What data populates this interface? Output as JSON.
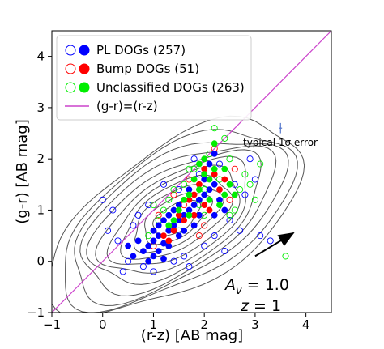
{
  "chart_data": {
    "type": "scatter",
    "xlabel": "(r-z) [AB mag]",
    "ylabel": "(g-r) [AB mag]",
    "xlim": [
      -1,
      4.5
    ],
    "ylim": [
      -1,
      4.5
    ],
    "xticks": [
      "−1",
      "0",
      "1",
      "2",
      "3",
      "4"
    ],
    "yticks": [
      "−1",
      "0",
      "1",
      "2",
      "3",
      "4"
    ],
    "grid": false,
    "legend_position": "top-left",
    "legend": [
      {
        "label": "PL DOGs (257)",
        "color": "#0000ff"
      },
      {
        "label": "Bump DOGs (51)",
        "color": "#ff0000"
      },
      {
        "label": "Unclassified DOGs (263)",
        "color": "#00ee00"
      },
      {
        "label": "(g-r)=(r-z)",
        "color": "#cc44cc"
      }
    ],
    "annotations": {
      "error_label": "typical 1σ error",
      "error_bar": {
        "x": 3.5,
        "y": 2.6,
        "xerr": 0.03,
        "yerr": 0.1
      },
      "reddening_vector": {
        "from": [
          3.0,
          0.1
        ],
        "to": [
          3.75,
          0.55
        ]
      },
      "av_label": "A",
      "av_subscript": "v",
      "av_value": " = 1.0",
      "z_label": "z",
      "z_value": " = 1"
    },
    "colors": {
      "pl": "#0000ff",
      "bump": "#ff0000",
      "unclassified": "#00ee00",
      "line": "#cc44cc",
      "contour": "#555555"
    },
    "series": [
      {
        "name": "PL DOGs (257)",
        "color": "#0000ff",
        "filled": [
          [
            0.9,
            0.3
          ],
          [
            1.0,
            0.4
          ],
          [
            1.1,
            0.5
          ],
          [
            1.2,
            0.35
          ],
          [
            0.8,
            0.2
          ],
          [
            1.3,
            0.6
          ],
          [
            1.4,
            0.7
          ],
          [
            1.5,
            0.8
          ],
          [
            1.0,
            0.1
          ],
          [
            0.7,
            0.4
          ],
          [
            1.6,
            0.9
          ],
          [
            1.7,
            1.0
          ],
          [
            1.8,
            1.1
          ],
          [
            1.9,
            1.2
          ],
          [
            2.0,
            1.3
          ],
          [
            2.1,
            1.4
          ],
          [
            2.2,
            1.5
          ],
          [
            1.2,
            0.8
          ],
          [
            1.1,
            0.2
          ],
          [
            0.9,
            0.0
          ],
          [
            1.3,
            0.3
          ],
          [
            1.5,
            0.5
          ],
          [
            1.6,
            0.6
          ],
          [
            2.0,
            1.6
          ],
          [
            2.1,
            1.9
          ],
          [
            2.2,
            2.1
          ],
          [
            1.9,
            0.9
          ],
          [
            1.4,
            1.0
          ],
          [
            1.8,
            0.7
          ],
          [
            1.2,
            0.05
          ],
          [
            1.0,
            0.6
          ],
          [
            0.6,
            0.1
          ],
          [
            1.7,
            1.4
          ],
          [
            2.3,
            1.2
          ],
          [
            2.4,
            1.0
          ],
          [
            2.2,
            0.9
          ],
          [
            1.5,
            1.1
          ],
          [
            1.3,
            0.9
          ],
          [
            1.1,
            0.7
          ],
          [
            0.5,
            0.3
          ]
        ],
        "hollow": [
          [
            0.5,
            0.0
          ],
          [
            0.3,
            0.4
          ],
          [
            0.8,
            -0.1
          ],
          [
            1.4,
            0.0
          ],
          [
            0.6,
            0.7
          ],
          [
            1.6,
            0.1
          ],
          [
            2.0,
            0.3
          ],
          [
            2.5,
            0.8
          ],
          [
            2.8,
            1.3
          ],
          [
            3.0,
            1.6
          ],
          [
            0.2,
            1.0
          ],
          [
            0.0,
            1.2
          ],
          [
            1.2,
            1.5
          ],
          [
            1.8,
            2.0
          ],
          [
            2.9,
            2.0
          ],
          [
            3.3,
            0.4
          ],
          [
            2.4,
            0.2
          ],
          [
            0.4,
            -0.2
          ],
          [
            1.0,
            -0.2
          ],
          [
            1.7,
            -0.1
          ],
          [
            2.6,
            1.5
          ],
          [
            0.9,
            1.1
          ],
          [
            1.9,
            1.7
          ],
          [
            2.3,
            1.9
          ],
          [
            0.1,
            0.6
          ],
          [
            3.1,
            0.5
          ],
          [
            2.7,
            0.6
          ],
          [
            1.5,
            1.4
          ],
          [
            0.7,
            0.9
          ],
          [
            2.2,
            0.5
          ]
        ]
      },
      {
        "name": "Bump DOGs (51)",
        "color": "#ff0000",
        "filled": [
          [
            1.4,
            0.6
          ],
          [
            1.8,
            1.3
          ],
          [
            2.0,
            1.1
          ],
          [
            2.2,
            1.7
          ],
          [
            1.6,
            0.8
          ],
          [
            1.9,
            1.5
          ],
          [
            2.1,
            1.0
          ],
          [
            1.3,
            0.4
          ],
          [
            1.7,
            1.2
          ],
          [
            2.3,
            1.4
          ],
          [
            1.5,
            0.9
          ],
          [
            2.0,
            1.8
          ],
          [
            1.2,
            0.5
          ],
          [
            2.4,
            1.6
          ],
          [
            1.8,
            0.9
          ]
        ],
        "hollow": [
          [
            1.6,
            1.1
          ],
          [
            2.0,
            0.7
          ],
          [
            1.1,
            0.9
          ],
          [
            2.5,
            1.2
          ],
          [
            1.4,
            1.3
          ],
          [
            2.2,
            2.2
          ],
          [
            1.9,
            0.5
          ],
          [
            2.6,
            1.8
          ],
          [
            1.0,
            0.3
          ],
          [
            1.7,
            1.6
          ]
        ]
      },
      {
        "name": "Unclassified DOGs (263)",
        "color": "#00ee00",
        "filled": [
          [
            1.5,
            1.0
          ],
          [
            1.7,
            1.3
          ],
          [
            1.9,
            1.4
          ],
          [
            2.1,
            1.2
          ],
          [
            2.2,
            1.8
          ],
          [
            2.0,
            2.0
          ],
          [
            2.4,
            1.3
          ],
          [
            1.6,
            1.2
          ],
          [
            1.8,
            1.6
          ],
          [
            2.3,
            1.1
          ],
          [
            1.4,
            0.8
          ],
          [
            2.5,
            1.5
          ],
          [
            2.2,
            2.3
          ],
          [
            1.9,
            1.9
          ],
          [
            2.1,
            1.6
          ],
          [
            1.3,
            0.7
          ],
          [
            2.6,
            1.3
          ],
          [
            1.7,
            0.9
          ],
          [
            2.0,
            1.7
          ],
          [
            2.4,
            1.8
          ]
        ],
        "hollow": [
          [
            1.2,
            1.0
          ],
          [
            1.6,
            1.5
          ],
          [
            2.0,
            1.4
          ],
          [
            2.3,
            1.6
          ],
          [
            2.5,
            2.0
          ],
          [
            1.8,
            1.8
          ],
          [
            2.7,
            1.4
          ],
          [
            1.1,
            0.8
          ],
          [
            1.5,
            0.6
          ],
          [
            2.1,
            2.1
          ],
          [
            2.4,
            2.4
          ],
          [
            1.3,
            1.2
          ],
          [
            2.8,
            1.7
          ],
          [
            1.9,
            1.1
          ],
          [
            2.6,
            1.0
          ],
          [
            1.4,
            1.4
          ],
          [
            3.0,
            1.2
          ],
          [
            2.2,
            2.6
          ],
          [
            0.9,
            0.5
          ],
          [
            2.9,
            1.5
          ],
          [
            2.0,
            0.9
          ],
          [
            1.7,
            1.8
          ],
          [
            3.1,
            1.9
          ],
          [
            1.0,
            1.1
          ],
          [
            2.5,
            0.9
          ],
          [
            3.6,
            0.1
          ]
        ]
      }
    ]
  }
}
